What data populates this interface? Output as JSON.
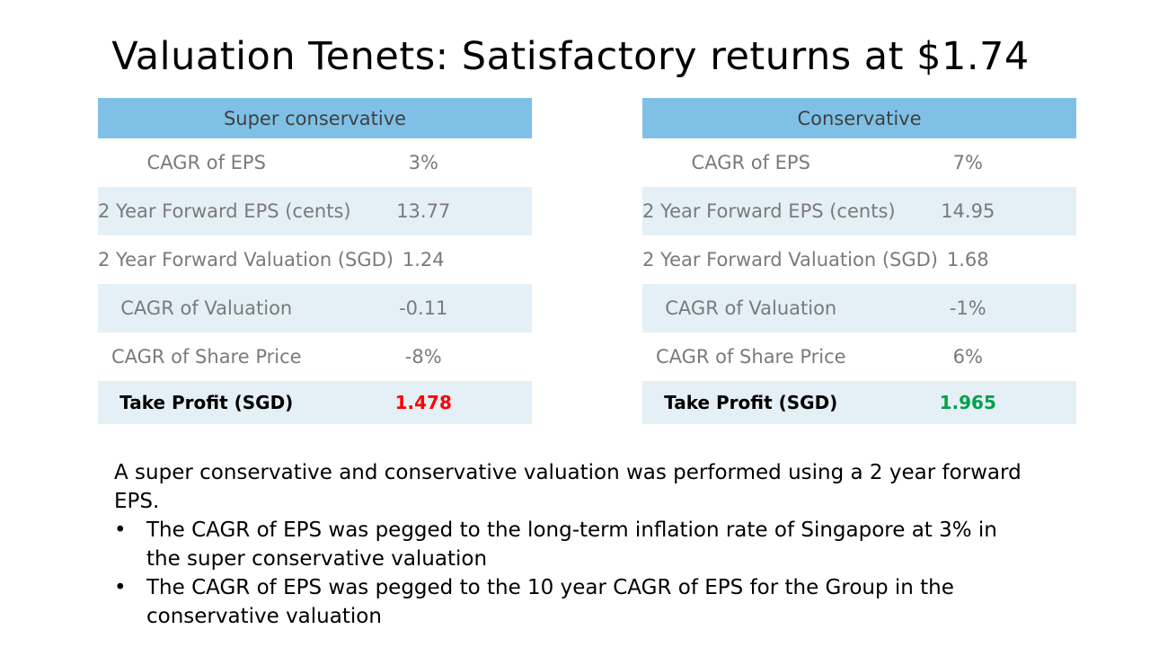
{
  "title": "Valuation Tenets: Satisfactory returns at $1.74",
  "tables": {
    "super": {
      "header": "Super conservative",
      "rows": [
        {
          "label": "CAGR of EPS",
          "value": "3%"
        },
        {
          "label": "2 Year Forward EPS (cents)",
          "value": "13.77"
        },
        {
          "label": "2 Year Forward Valuation (SGD)",
          "value": "1.24"
        },
        {
          "label": "CAGR of Valuation",
          "value": "-0.11"
        },
        {
          "label": "CAGR of Share Price",
          "value": "-8%"
        }
      ],
      "final": {
        "label": "Take Profit (SGD)",
        "value": "1.478",
        "color": "#ff0000"
      }
    },
    "conservative": {
      "header": "Conservative",
      "rows": [
        {
          "label": "CAGR of EPS",
          "value": "7%"
        },
        {
          "label": "2 Year Forward EPS (cents)",
          "value": "14.95"
        },
        {
          "label": "2 Year Forward Valuation (SGD)",
          "value": "1.68"
        },
        {
          "label": "CAGR of Valuation",
          "value": "-1%"
        },
        {
          "label": "CAGR of Share Price",
          "value": "6%"
        }
      ],
      "final": {
        "label": "Take Profit (SGD)",
        "value": "1.965",
        "color": "#00a14b"
      }
    }
  },
  "notes": {
    "intro": "A super conservative and conservative valuation was performed using a 2 year forward EPS.",
    "bullets": [
      "The CAGR of EPS was pegged to the long-term inflation rate of Singapore at 3% in the super conservative valuation",
      "The CAGR of EPS was pegged to the 10 year CAGR of EPS for the Group in the conservative valuation"
    ],
    "bullet_symbol": "•"
  },
  "colors": {
    "header_bg": "#7fc1e6",
    "alt_row_bg": "#e5eff6"
  }
}
